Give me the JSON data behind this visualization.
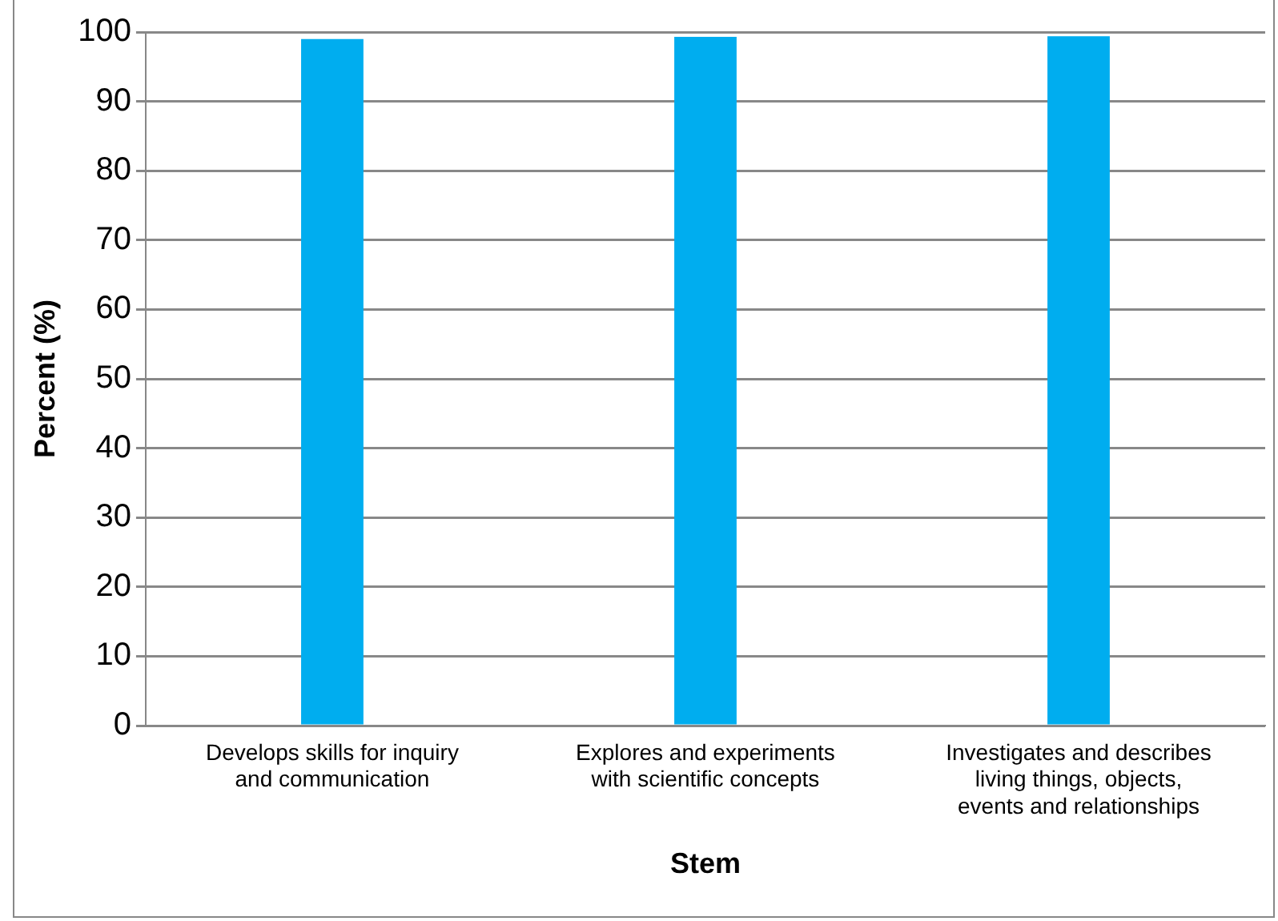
{
  "chart_data": {
    "type": "bar",
    "xlabel": "Stem",
    "ylabel": "Percent (%)",
    "categories": [
      "Develops skills for inquiry and communication",
      "Explores and experiments with scientific concepts",
      "Investigates and describes living things, objects, events and relationships"
    ],
    "values": [
      99,
      99.3,
      99.4
    ],
    "color": "#00adef",
    "ylim": [
      0,
      100
    ],
    "yticks": [
      0,
      10,
      20,
      30,
      40,
      50,
      60,
      70,
      80,
      90,
      100
    ],
    "grid": "y",
    "legend": false
  }
}
